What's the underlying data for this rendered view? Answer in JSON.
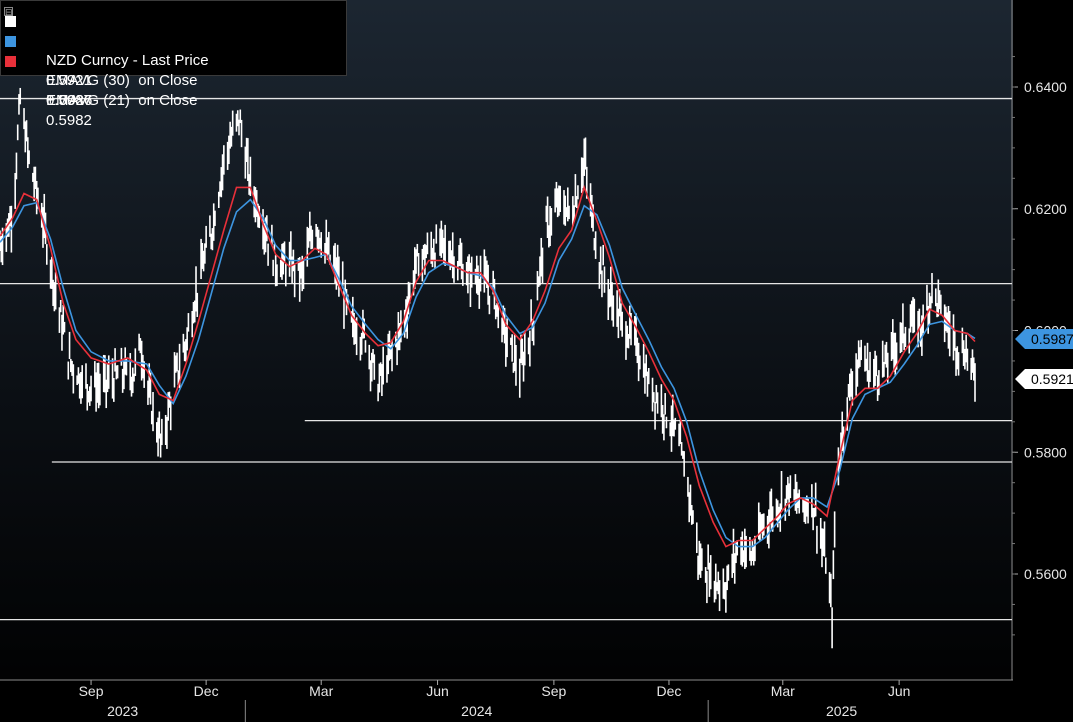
{
  "legend": {
    "row1": {
      "label": "NZD Curncy - Last Price",
      "value": "0.5921",
      "change": "+.0026",
      "color": "#ffffff"
    },
    "row2": {
      "label": "EMAVG (30)  on Close",
      "value": "0.5987",
      "color": "#3d95e0"
    },
    "row3": {
      "label": "EMAVG (21)  on Close",
      "value": "0.5982",
      "color": "#e8303a"
    },
    "toggle": "⊟"
  },
  "tags": {
    "ema30": {
      "text": "0.5987",
      "bg": "#3d95e0",
      "fg": "#000000"
    },
    "last": {
      "text": "0.5921",
      "bg": "#ffffff",
      "fg": "#000000"
    }
  },
  "chart_data": {
    "type": "line",
    "x_range": [
      "2023-06-21",
      "2025-07-31"
    ],
    "ylim": [
      0.5475,
      0.6525
    ],
    "ytick_values": [
      0.56,
      0.58,
      0.6,
      0.62,
      0.64
    ],
    "ytick_labels": [
      "0.5600",
      "0.5800",
      "0.6000",
      "0.6200",
      "0.6400"
    ],
    "month_ticks": [
      {
        "date": "2023-09-01",
        "label": "Sep"
      },
      {
        "date": "2023-12-01",
        "label": "Dec"
      },
      {
        "date": "2024-03-01",
        "label": "Mar"
      },
      {
        "date": "2024-06-01",
        "label": "Jun"
      },
      {
        "date": "2024-09-01",
        "label": "Sep"
      },
      {
        "date": "2024-12-01",
        "label": "Dec"
      },
      {
        "date": "2025-03-01",
        "label": "Mar"
      },
      {
        "date": "2025-06-01",
        "label": "Jun"
      }
    ],
    "year_labels": [
      {
        "label": "2023",
        "start": "2023-06-21",
        "end": "2024-01-01"
      },
      {
        "label": "2024",
        "start": "2024-01-01",
        "end": "2025-01-01"
      },
      {
        "label": "2025",
        "start": "2025-01-01",
        "end": "2025-07-31"
      }
    ],
    "reference_lines": [
      {
        "y": 0.6381,
        "from": "2023-06-21"
      },
      {
        "y": 0.6077,
        "from": "2023-06-21"
      },
      {
        "y": 0.5852,
        "from": "2024-02-17"
      },
      {
        "y": 0.5784,
        "from": "2023-08-01"
      },
      {
        "y": 0.5525,
        "from": "2023-06-21"
      }
    ],
    "series": [
      {
        "name": "NZD Curncy - Last Price",
        "style": "bars",
        "color": "#ffffff",
        "points": [
          [
            "2023-06-21",
            0.614
          ],
          [
            "2023-07-01",
            0.619
          ],
          [
            "2023-07-07",
            0.638
          ],
          [
            "2023-07-14",
            0.628
          ],
          [
            "2023-07-25",
            0.618
          ],
          [
            "2023-08-05",
            0.605
          ],
          [
            "2023-08-15",
            0.595
          ],
          [
            "2023-08-27",
            0.591
          ],
          [
            "2023-09-10",
            0.591
          ],
          [
            "2023-09-25",
            0.593
          ],
          [
            "2023-10-05",
            0.593
          ],
          [
            "2023-10-10",
            0.598
          ],
          [
            "2023-10-18",
            0.588
          ],
          [
            "2023-10-27",
            0.581
          ],
          [
            "2023-11-05",
            0.591
          ],
          [
            "2023-11-15",
            0.598
          ],
          [
            "2023-11-25",
            0.608
          ],
          [
            "2023-12-05",
            0.616
          ],
          [
            "2023-12-15",
            0.628
          ],
          [
            "2023-12-27",
            0.635
          ],
          [
            "2024-01-05",
            0.624
          ],
          [
            "2024-01-15",
            0.618
          ],
          [
            "2024-01-25",
            0.611
          ],
          [
            "2024-02-05",
            0.611
          ],
          [
            "2024-02-15",
            0.609
          ],
          [
            "2024-02-25",
            0.618
          ],
          [
            "2024-03-05",
            0.613
          ],
          [
            "2024-03-15",
            0.609
          ],
          [
            "2024-03-25",
            0.601
          ],
          [
            "2024-04-05",
            0.599
          ],
          [
            "2024-04-15",
            0.591
          ],
          [
            "2024-04-25",
            0.596
          ],
          [
            "2024-05-05",
            0.601
          ],
          [
            "2024-05-15",
            0.611
          ],
          [
            "2024-05-25",
            0.613
          ],
          [
            "2024-06-05",
            0.614
          ],
          [
            "2024-06-15",
            0.612
          ],
          [
            "2024-06-25",
            0.609
          ],
          [
            "2024-07-05",
            0.609
          ],
          [
            "2024-07-15",
            0.606
          ],
          [
            "2024-07-25",
            0.599
          ],
          [
            "2024-08-05",
            0.593
          ],
          [
            "2024-08-15",
            0.601
          ],
          [
            "2024-08-25",
            0.616
          ],
          [
            "2024-09-05",
            0.621
          ],
          [
            "2024-09-15",
            0.619
          ],
          [
            "2024-09-25",
            0.628
          ],
          [
            "2024-10-05",
            0.613
          ],
          [
            "2024-10-15",
            0.606
          ],
          [
            "2024-10-25",
            0.601
          ],
          [
            "2024-11-05",
            0.598
          ],
          [
            "2024-11-15",
            0.591
          ],
          [
            "2024-11-25",
            0.588
          ],
          [
            "2024-12-05",
            0.584
          ],
          [
            "2024-12-15",
            0.576
          ],
          [
            "2024-12-25",
            0.562
          ],
          [
            "2025-01-05",
            0.559
          ],
          [
            "2025-01-15",
            0.558
          ],
          [
            "2025-01-25",
            0.565
          ],
          [
            "2025-02-05",
            0.563
          ],
          [
            "2025-02-15",
            0.569
          ],
          [
            "2025-02-25",
            0.571
          ],
          [
            "2025-03-05",
            0.574
          ],
          [
            "2025-03-15",
            0.571
          ],
          [
            "2025-03-25",
            0.572
          ],
          [
            "2025-04-05",
            0.561
          ],
          [
            "2025-04-09",
            0.553
          ],
          [
            "2025-04-12",
            0.574
          ],
          [
            "2025-04-20",
            0.588
          ],
          [
            "2025-05-01",
            0.596
          ],
          [
            "2025-05-10",
            0.593
          ],
          [
            "2025-05-20",
            0.594
          ],
          [
            "2025-05-30",
            0.598
          ],
          [
            "2025-06-10",
            0.601
          ],
          [
            "2025-06-20",
            0.601
          ],
          [
            "2025-06-27",
            0.607
          ],
          [
            "2025-07-05",
            0.603
          ],
          [
            "2025-07-15",
            0.598
          ],
          [
            "2025-07-25",
            0.596
          ],
          [
            "2025-07-31",
            0.5921
          ]
        ]
      },
      {
        "name": "EMAVG (30)  on Close",
        "style": "line",
        "color": "#3d95e0",
        "points": [
          [
            "2023-06-21",
            0.6145
          ],
          [
            "2023-07-01",
            0.617
          ],
          [
            "2023-07-10",
            0.6205
          ],
          [
            "2023-07-20",
            0.621
          ],
          [
            "2023-07-31",
            0.615
          ],
          [
            "2023-08-10",
            0.607
          ],
          [
            "2023-08-20",
            0.6
          ],
          [
            "2023-09-01",
            0.5965
          ],
          [
            "2023-09-15",
            0.595
          ],
          [
            "2023-09-30",
            0.595
          ],
          [
            "2023-10-15",
            0.5945
          ],
          [
            "2023-10-25",
            0.591
          ],
          [
            "2023-11-05",
            0.588
          ],
          [
            "2023-11-15",
            0.5925
          ],
          [
            "2023-11-25",
            0.5985
          ],
          [
            "2023-12-05",
            0.606
          ],
          [
            "2023-12-15",
            0.6135
          ],
          [
            "2023-12-25",
            0.6195
          ],
          [
            "2024-01-05",
            0.6215
          ],
          [
            "2024-01-15",
            0.6185
          ],
          [
            "2024-01-25",
            0.614
          ],
          [
            "2024-02-05",
            0.6115
          ],
          [
            "2024-02-15",
            0.6115
          ],
          [
            "2024-02-25",
            0.612
          ],
          [
            "2024-03-05",
            0.6125
          ],
          [
            "2024-03-15",
            0.6085
          ],
          [
            "2024-03-25",
            0.604
          ],
          [
            "2024-04-05",
            0.601
          ],
          [
            "2024-04-15",
            0.5985
          ],
          [
            "2024-04-25",
            0.597
          ],
          [
            "2024-05-05",
            0.5995
          ],
          [
            "2024-05-15",
            0.6055
          ],
          [
            "2024-05-25",
            0.6095
          ],
          [
            "2024-06-05",
            0.611
          ],
          [
            "2024-06-15",
            0.6105
          ],
          [
            "2024-06-25",
            0.6095
          ],
          [
            "2024-07-05",
            0.609
          ],
          [
            "2024-07-15",
            0.607
          ],
          [
            "2024-07-25",
            0.6025
          ],
          [
            "2024-08-05",
            0.5995
          ],
          [
            "2024-08-15",
            0.6005
          ],
          [
            "2024-08-25",
            0.6045
          ],
          [
            "2024-09-05",
            0.6115
          ],
          [
            "2024-09-15",
            0.615
          ],
          [
            "2024-09-25",
            0.6205
          ],
          [
            "2024-10-05",
            0.619
          ],
          [
            "2024-10-15",
            0.614
          ],
          [
            "2024-10-25",
            0.607
          ],
          [
            "2024-11-05",
            0.6025
          ],
          [
            "2024-11-15",
            0.5985
          ],
          [
            "2024-11-25",
            0.594
          ],
          [
            "2024-12-05",
            0.5905
          ],
          [
            "2024-12-15",
            0.585
          ],
          [
            "2024-12-25",
            0.577
          ],
          [
            "2025-01-05",
            0.5705
          ],
          [
            "2025-01-15",
            0.566
          ],
          [
            "2025-01-25",
            0.5645
          ],
          [
            "2025-02-05",
            0.5645
          ],
          [
            "2025-02-15",
            0.566
          ],
          [
            "2025-02-25",
            0.5685
          ],
          [
            "2025-03-05",
            0.5705
          ],
          [
            "2025-03-15",
            0.5725
          ],
          [
            "2025-03-25",
            0.5725
          ],
          [
            "2025-04-05",
            0.571
          ],
          [
            "2025-04-15",
            0.577
          ],
          [
            "2025-04-25",
            0.5855
          ],
          [
            "2025-05-05",
            0.5895
          ],
          [
            "2025-05-15",
            0.5905
          ],
          [
            "2025-05-25",
            0.5915
          ],
          [
            "2025-06-05",
            0.5945
          ],
          [
            "2025-06-15",
            0.5975
          ],
          [
            "2025-06-25",
            0.601
          ],
          [
            "2025-07-05",
            0.6015
          ],
          [
            "2025-07-15",
            0.6
          ],
          [
            "2025-07-25",
            0.5995
          ],
          [
            "2025-07-31",
            0.5987
          ]
        ]
      },
      {
        "name": "EMAVG (21)  on Close",
        "style": "line",
        "color": "#e8303a",
        "points": [
          [
            "2023-06-21",
            0.6155
          ],
          [
            "2023-07-01",
            0.6185
          ],
          [
            "2023-07-10",
            0.6225
          ],
          [
            "2023-07-20",
            0.6215
          ],
          [
            "2023-07-31",
            0.6135
          ],
          [
            "2023-08-10",
            0.6045
          ],
          [
            "2023-08-20",
            0.5985
          ],
          [
            "2023-09-01",
            0.5955
          ],
          [
            "2023-09-15",
            0.5945
          ],
          [
            "2023-09-30",
            0.5955
          ],
          [
            "2023-10-15",
            0.5935
          ],
          [
            "2023-10-25",
            0.5895
          ],
          [
            "2023-11-05",
            0.5885
          ],
          [
            "2023-11-15",
            0.5945
          ],
          [
            "2023-11-25",
            0.6015
          ],
          [
            "2023-12-05",
            0.609
          ],
          [
            "2023-12-15",
            0.6165
          ],
          [
            "2023-12-25",
            0.6235
          ],
          [
            "2024-01-05",
            0.6235
          ],
          [
            "2024-01-15",
            0.6175
          ],
          [
            "2024-01-25",
            0.6125
          ],
          [
            "2024-02-05",
            0.6105
          ],
          [
            "2024-02-15",
            0.6115
          ],
          [
            "2024-02-25",
            0.6135
          ],
          [
            "2024-03-05",
            0.6125
          ],
          [
            "2024-03-15",
            0.6075
          ],
          [
            "2024-03-25",
            0.6025
          ],
          [
            "2024-04-05",
            0.5995
          ],
          [
            "2024-04-15",
            0.5975
          ],
          [
            "2024-04-25",
            0.598
          ],
          [
            "2024-05-05",
            0.6015
          ],
          [
            "2024-05-15",
            0.608
          ],
          [
            "2024-05-25",
            0.6115
          ],
          [
            "2024-06-05",
            0.6115
          ],
          [
            "2024-06-15",
            0.6105
          ],
          [
            "2024-06-25",
            0.6095
          ],
          [
            "2024-07-05",
            0.6095
          ],
          [
            "2024-07-15",
            0.6065
          ],
          [
            "2024-07-25",
            0.601
          ],
          [
            "2024-08-05",
            0.5985
          ],
          [
            "2024-08-15",
            0.6015
          ],
          [
            "2024-08-25",
            0.6065
          ],
          [
            "2024-09-05",
            0.6135
          ],
          [
            "2024-09-15",
            0.6165
          ],
          [
            "2024-09-25",
            0.6235
          ],
          [
            "2024-10-05",
            0.618
          ],
          [
            "2024-10-15",
            0.612
          ],
          [
            "2024-10-25",
            0.6045
          ],
          [
            "2024-11-05",
            0.6005
          ],
          [
            "2024-11-15",
            0.5965
          ],
          [
            "2024-11-25",
            0.592
          ],
          [
            "2024-12-05",
            0.5885
          ],
          [
            "2024-12-15",
            0.5825
          ],
          [
            "2024-12-25",
            0.5745
          ],
          [
            "2025-01-05",
            0.5685
          ],
          [
            "2025-01-15",
            0.5645
          ],
          [
            "2025-01-25",
            0.5655
          ],
          [
            "2025-02-05",
            0.5655
          ],
          [
            "2025-02-15",
            0.5675
          ],
          [
            "2025-02-25",
            0.5695
          ],
          [
            "2025-03-05",
            0.5715
          ],
          [
            "2025-03-15",
            0.5725
          ],
          [
            "2025-03-25",
            0.5715
          ],
          [
            "2025-04-05",
            0.5695
          ],
          [
            "2025-04-15",
            0.5795
          ],
          [
            "2025-04-25",
            0.5885
          ],
          [
            "2025-05-05",
            0.5905
          ],
          [
            "2025-05-15",
            0.5905
          ],
          [
            "2025-05-25",
            0.5925
          ],
          [
            "2025-06-05",
            0.5965
          ],
          [
            "2025-06-15",
            0.5995
          ],
          [
            "2025-06-25",
            0.6035
          ],
          [
            "2025-07-05",
            0.6025
          ],
          [
            "2025-07-15",
            0.6
          ],
          [
            "2025-07-25",
            0.5995
          ],
          [
            "2025-07-31",
            0.5982
          ]
        ]
      }
    ]
  }
}
